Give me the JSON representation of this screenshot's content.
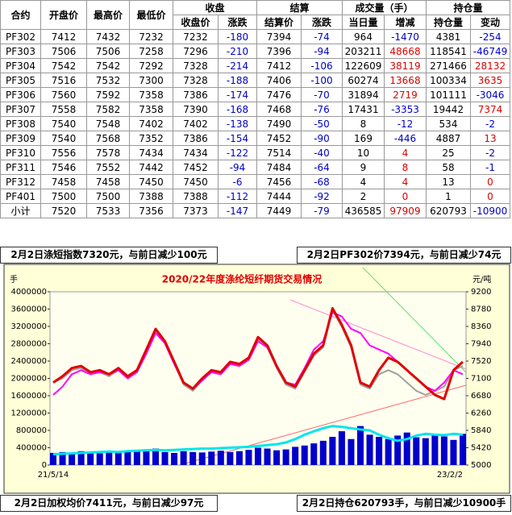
{
  "table": {
    "header_top": [
      "合约",
      "开盘价",
      "最高价",
      "最低价",
      "收盘",
      "结算",
      "成交量（手）",
      "持仓量"
    ],
    "header_sub": [
      "收盘价",
      "涨跌",
      "结算价",
      "涨跌",
      "当日量",
      "增减",
      "持仓量",
      "变动"
    ],
    "rows": [
      [
        "PF302",
        7412,
        7432,
        7232,
        7232,
        -180,
        7394,
        -74,
        964,
        -1470,
        4381,
        -254
      ],
      [
        "PF303",
        7506,
        7506,
        7258,
        7296,
        -210,
        7396,
        -94,
        203211,
        48668,
        118541,
        -46749
      ],
      [
        "PF304",
        7542,
        7542,
        7292,
        7328,
        -214,
        7412,
        -106,
        122609,
        38119,
        271466,
        28132
      ],
      [
        "PF305",
        7516,
        7532,
        7300,
        7328,
        -188,
        7406,
        -100,
        60274,
        13668,
        100334,
        3635
      ],
      [
        "PF306",
        7560,
        7592,
        7358,
        7386,
        -174,
        7476,
        -70,
        31894,
        2719,
        101111,
        -3046
      ],
      [
        "PF307",
        7558,
        7582,
        7358,
        7390,
        -168,
        7468,
        -76,
        17431,
        -3353,
        19442,
        7374
      ],
      [
        "PF308",
        7540,
        7548,
        7402,
        7402,
        -138,
        7490,
        -50,
        8,
        -12,
        534,
        -2
      ],
      [
        "PF309",
        7540,
        7568,
        7352,
        7386,
        -154,
        7452,
        -90,
        169,
        -446,
        4887,
        13
      ],
      [
        "PF310",
        7556,
        7578,
        7434,
        7434,
        -122,
        7514,
        -40,
        10,
        4,
        25,
        -2
      ],
      [
        "PF311",
        7546,
        7552,
        7442,
        7452,
        -94,
        7484,
        -64,
        9,
        8,
        58,
        -1
      ],
      [
        "PF312",
        7458,
        7458,
        7450,
        7450,
        -6,
        7456,
        -68,
        4,
        4,
        13,
        0
      ],
      [
        "PF401",
        7500,
        7500,
        7388,
        7388,
        -112,
        7444,
        -92,
        2,
        0,
        1,
        0
      ],
      [
        "小计",
        7520,
        7533,
        7356,
        7373,
        -147,
        7449,
        -79,
        436585,
        97909,
        620793,
        -10900
      ]
    ]
  },
  "notes": [
    "2月2日涤短指数7320元，与前日减少100元",
    "2月2日PF302价7394元，与前日减少74元",
    "2月2日加权均价7411元，与前日减少97元",
    "2月2日持仓620793手，与前日减少10900手"
  ],
  "chart_data": {
    "type": "combo",
    "title": "2020/22年度涤纶短纤期货交易情况",
    "ylabel": "手",
    "y2label": "元/吨",
    "categories": [
      "21/5/14",
      null,
      null,
      null,
      null,
      null,
      null,
      null,
      null,
      null,
      null,
      null,
      null,
      null,
      null,
      null,
      null,
      null,
      null,
      null,
      null,
      null,
      null,
      null,
      null,
      null,
      null,
      null,
      null,
      null,
      null,
      null,
      null,
      null,
      null,
      null,
      null,
      null,
      null,
      null,
      null,
      null,
      null,
      null,
      "23/2/2"
    ],
    "ylim": [
      0,
      4000000
    ],
    "yticks": [
      0,
      400000,
      800000,
      1200000,
      1600000,
      2000000,
      2400000,
      2800000,
      3200000,
      3600000,
      4000000
    ],
    "y2lim": [
      5000,
      9200
    ],
    "y2ticks": [
      5000,
      5420,
      5840,
      6260,
      6680,
      7100,
      7520,
      7940,
      8360,
      8780,
      9200
    ],
    "series": [
      {
        "kind": "bar",
        "color": "#0000cc",
        "values": [
          280000,
          300000,
          260000,
          320000,
          290000,
          270000,
          310000,
          280000,
          300000,
          330000,
          350000,
          380000,
          300000,
          280000,
          320000,
          300000,
          290000,
          310000,
          330000,
          300000,
          320000,
          350000,
          400000,
          380000,
          340000,
          360000,
          420000,
          450000,
          500000,
          560000,
          650000,
          780000,
          600000,
          900000,
          700000,
          650000,
          600000,
          680000,
          750000,
          640000,
          620000,
          700000,
          660000,
          580000,
          720000
        ]
      },
      {
        "kind": "line",
        "color": "#00e5ee",
        "width": 3,
        "values": [
          250000,
          260000,
          270000,
          280000,
          290000,
          300000,
          310000,
          300000,
          320000,
          330000,
          340000,
          350000,
          340000,
          350000,
          360000,
          370000,
          380000,
          380000,
          390000,
          400000,
          410000,
          420000,
          440000,
          460000,
          480000,
          520000,
          600000,
          700000,
          780000,
          850000,
          900000,
          880000,
          850000,
          820000,
          800000,
          700000,
          620000,
          560000,
          600000,
          680000,
          720000,
          700000,
          690000,
          720000,
          700000
        ]
      },
      {
        "kind": "line",
        "axis": "y2",
        "color": "#a0a0a0",
        "width": 2,
        "values": [
          7000,
          7100,
          7300,
          7350,
          7200,
          7250,
          7150,
          7300,
          7100,
          7250,
          7750,
          8250,
          7950,
          7450,
          6950,
          6800,
          7050,
          7250,
          7200,
          7450,
          7400,
          7550,
          8050,
          7850,
          7350,
          6950,
          6850,
          7250,
          7650,
          7850,
          8750,
          8350,
          7850,
          6950,
          6850,
          7200,
          7300,
          7200,
          7000,
          6800,
          6700,
          6800,
          6900,
          7300,
          7400
        ]
      },
      {
        "kind": "line",
        "axis": "y2",
        "color": "#ff00ff",
        "width": 2,
        "values": [
          6700,
          6900,
          7200,
          7300,
          7200,
          7250,
          7200,
          7300,
          7100,
          7250,
          7700,
          8200,
          7950,
          7450,
          7000,
          6850,
          7050,
          7250,
          7200,
          7450,
          7400,
          7550,
          8000,
          7850,
          7400,
          7000,
          6950,
          7350,
          7800,
          8000,
          8700,
          8600,
          8300,
          8200,
          7900,
          7800,
          7700,
          7500,
          7300,
          7100,
          6900,
          6800,
          7000,
          7300,
          7200
        ]
      },
      {
        "kind": "line",
        "axis": "y2",
        "color": "#e00000",
        "width": 3,
        "values": [
          7000,
          7150,
          7350,
          7400,
          7250,
          7300,
          7200,
          7350,
          7150,
          7300,
          7800,
          8300,
          8000,
          7500,
          7000,
          6850,
          7100,
          7300,
          7250,
          7500,
          7450,
          7600,
          8100,
          7900,
          7400,
          7000,
          6900,
          7300,
          7700,
          7900,
          8800,
          8400,
          7900,
          7000,
          6900,
          7300,
          7600,
          7500,
          7300,
          7100,
          6900,
          6700,
          6600,
          7300,
          7500
        ]
      }
    ]
  }
}
